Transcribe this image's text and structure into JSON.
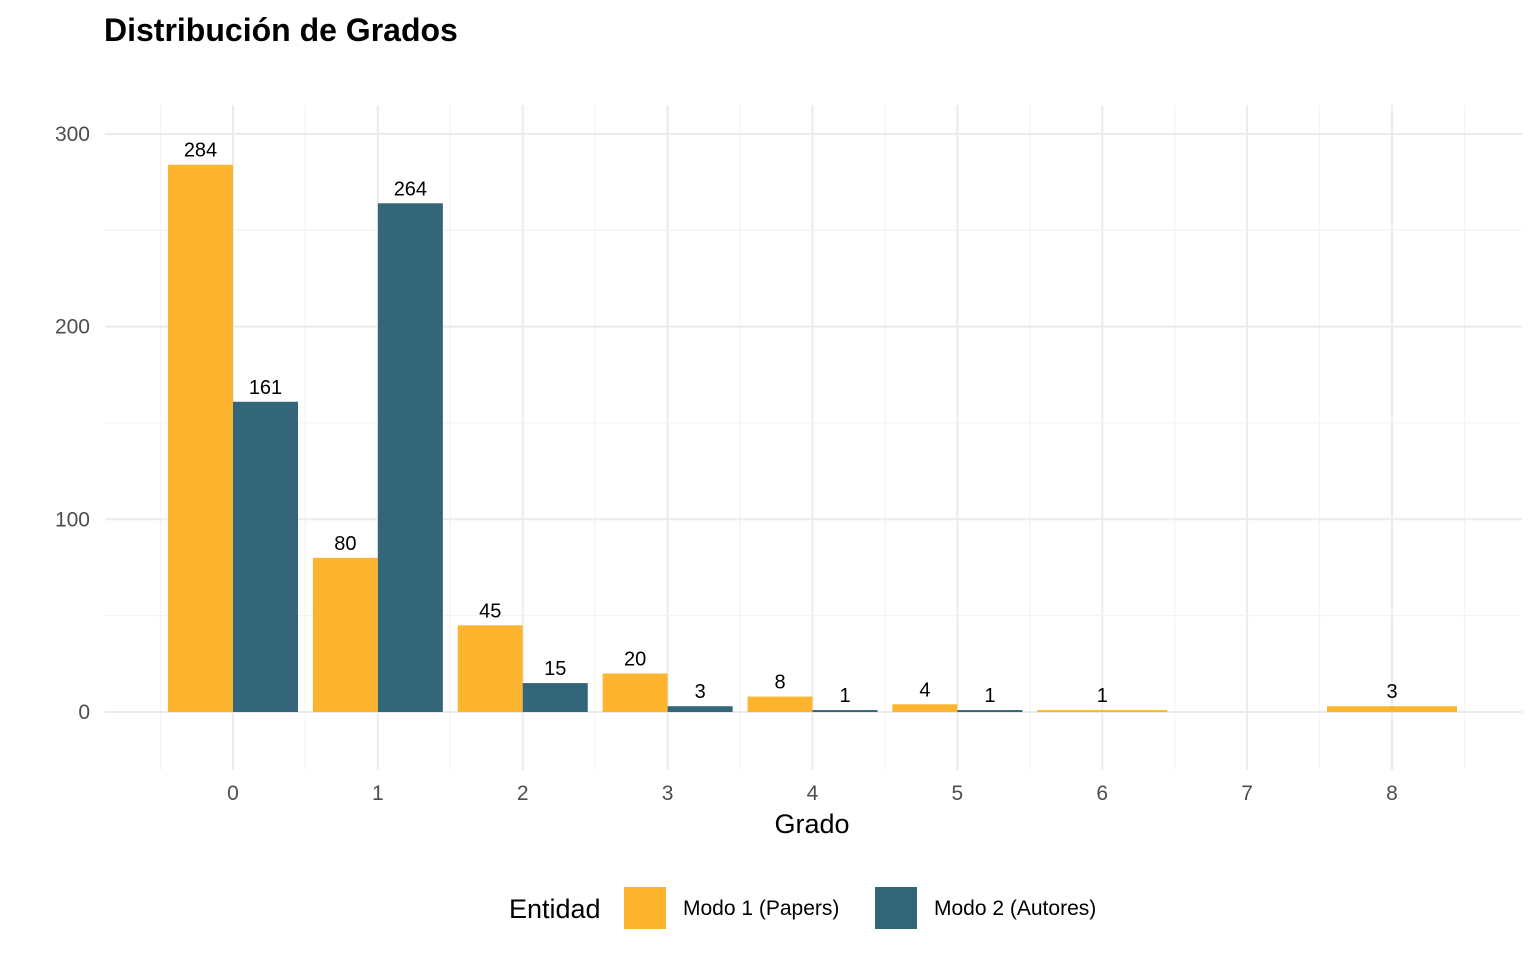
{
  "chart_data": {
    "type": "bar",
    "title": "Distribución de Grados",
    "xlabel": "Grado",
    "ylabel": "",
    "categories": [
      "0",
      "1",
      "2",
      "3",
      "4",
      "5",
      "6",
      "7",
      "8"
    ],
    "series": [
      {
        "name": "Modo 1 (Papers)",
        "color": "#FDB52F",
        "values": [
          284,
          80,
          45,
          20,
          8,
          4,
          1,
          null,
          3
        ],
        "labels": [
          "284",
          "80",
          "45",
          "20",
          "8",
          "4",
          "1",
          null,
          "3"
        ]
      },
      {
        "name": "Modo 2 (Autores)",
        "color": "#336679",
        "values": [
          161,
          264,
          15,
          3,
          1,
          1,
          null,
          null,
          null
        ],
        "labels": [
          "161",
          "264",
          "15",
          "3",
          "1",
          "1",
          null,
          null,
          null
        ]
      }
    ],
    "ylim": [
      -30,
      315
    ],
    "yticks": [
      "0",
      "100",
      "200",
      "300"
    ],
    "grid": true,
    "legend": {
      "title": "Entidad",
      "position": "bottom"
    }
  }
}
